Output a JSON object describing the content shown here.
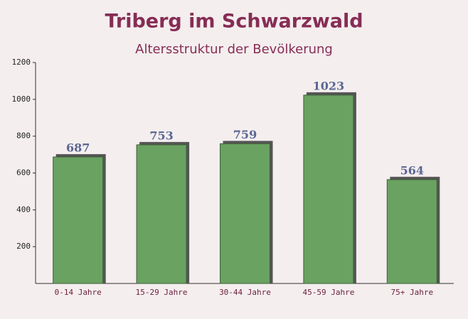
{
  "chart_data": {
    "type": "bar",
    "title": "Triberg im Schwarzwald",
    "subtitle": "Altersstruktur der Bevölkerung",
    "categories": [
      "0-14 Jahre",
      "15-29 Jahre",
      "30-44 Jahre",
      "45-59 Jahre",
      "75+ Jahre"
    ],
    "values": [
      687,
      753,
      759,
      1023,
      564
    ],
    "color": "#6aa262",
    "ylim": [
      0,
      1200
    ],
    "yticks": [
      200,
      400,
      600,
      800,
      1000,
      1200
    ],
    "grid": false
  }
}
